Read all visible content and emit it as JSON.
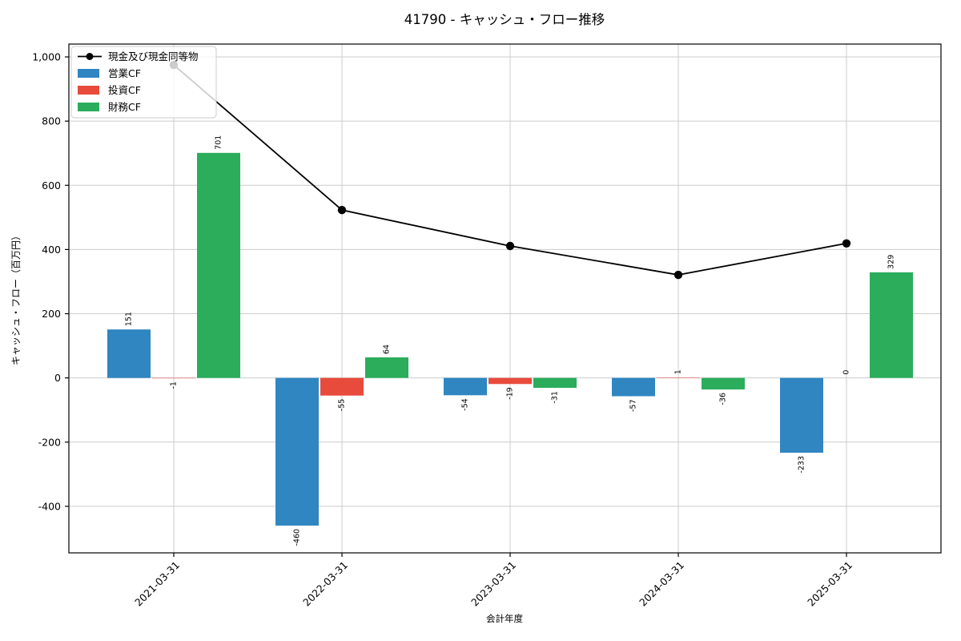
{
  "title": "41790 - キャッシュ・フロー推移",
  "axes": {
    "xlabel": "会計年度",
    "ylabel": "キャッシュ・フロー（百万円）"
  },
  "legend": {
    "position": "upper-left",
    "entries": [
      {
        "key": "cash-equivalents",
        "label": "現金及び現金同等物",
        "marker": "line-dot",
        "color": "#000000"
      },
      {
        "key": "operating-cf",
        "label": "営業CF",
        "marker": "swatch",
        "color": "#2f86c1"
      },
      {
        "key": "investing-cf",
        "label": "投資CF",
        "marker": "swatch",
        "color": "#e84b3c"
      },
      {
        "key": "financing-cf",
        "label": "財務CF",
        "marker": "swatch",
        "color": "#2bad5c"
      }
    ]
  },
  "chart_data": {
    "type": "bar",
    "categories": [
      "2021-03-31",
      "2022-03-31",
      "2023-03-31",
      "2024-03-31",
      "2025-03-31"
    ],
    "series": [
      {
        "key": "operating-cf",
        "name": "営業CF",
        "type": "bar",
        "color": "#2f86c1",
        "values": [
          151,
          -460,
          -54,
          -57,
          -233
        ]
      },
      {
        "key": "investing-cf",
        "name": "投資CF",
        "type": "bar",
        "color": "#e84b3c",
        "values": [
          -1,
          -55,
          -19,
          1,
          0
        ]
      },
      {
        "key": "financing-cf",
        "name": "財務CF",
        "type": "bar",
        "color": "#2bad5c",
        "values": [
          701,
          64,
          -31,
          -36,
          329
        ]
      },
      {
        "key": "cash-equivalents",
        "name": "現金及び現金同等物",
        "type": "line",
        "color": "#000000",
        "values": [
          975,
          523,
          411,
          321,
          419
        ]
      }
    ],
    "bar_labels_shown": true,
    "title": "41790 - キャッシュ・フロー推移",
    "xlabel": "会計年度",
    "ylabel": "キャッシュ・フロー（百万円）",
    "yticks": [
      1000,
      800,
      600,
      400,
      200,
      0,
      -200,
      -400
    ],
    "ylim": [
      -545,
      1040
    ],
    "grid": true,
    "grid_color": "#cccccc",
    "frame_color": "#000000",
    "legend_position": "upper-left"
  }
}
